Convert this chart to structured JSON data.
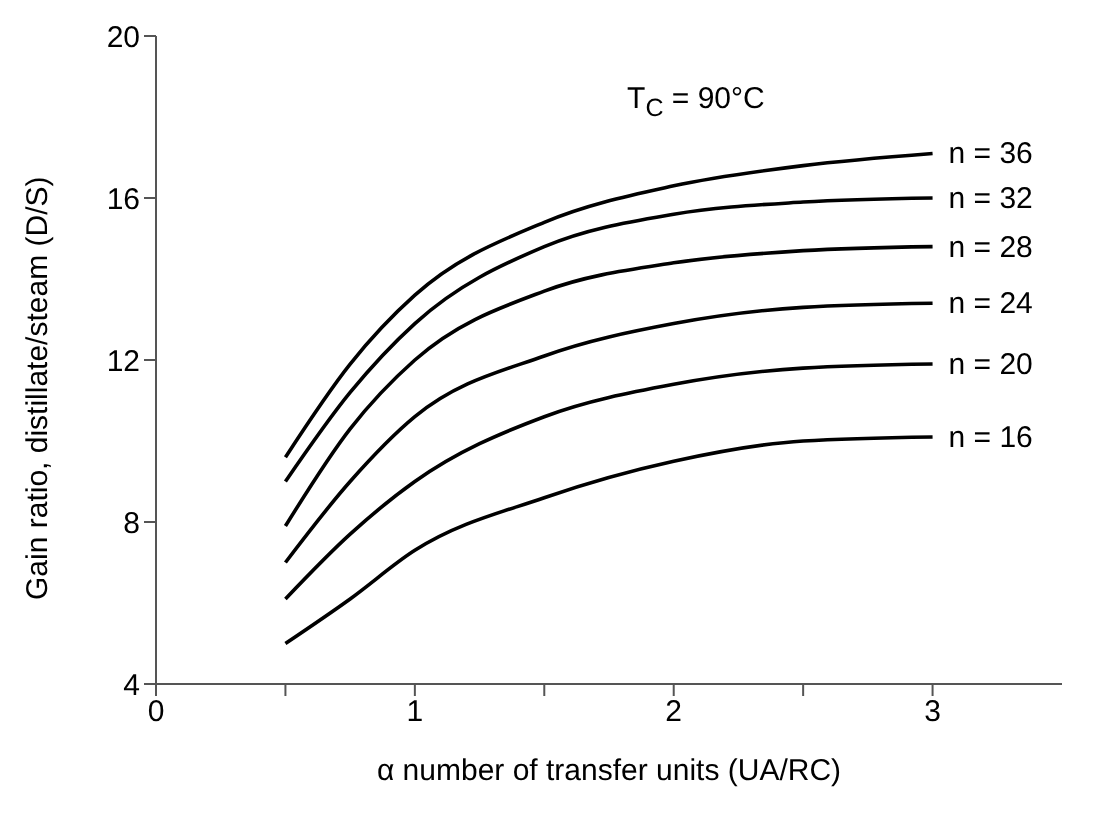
{
  "chart_data": {
    "type": "line",
    "xlabel": "α number of transfer units (UA/RC)",
    "ylabel": "Gain ratio, distillate/steam (D/S)",
    "annotations": [
      "T$_{C}$ = 90°C"
    ],
    "x": [
      0.5,
      0.75,
      1,
      1.5,
      2,
      2.5,
      3
    ],
    "series": [
      {
        "name": "n = 36",
        "color": "#000000",
        "values": [
          9.6,
          11.9,
          13.6,
          15.4,
          16.3,
          16.8,
          17.1
        ]
      },
      {
        "name": "n = 32",
        "color": "#000000",
        "values": [
          9.0,
          11.2,
          12.9,
          14.8,
          15.6,
          15.9,
          16.0
        ]
      },
      {
        "name": "n = 28",
        "color": "#000000",
        "values": [
          7.9,
          10.3,
          12.0,
          13.7,
          14.4,
          14.7,
          14.8
        ]
      },
      {
        "name": "n = 24",
        "color": "#000000",
        "values": [
          7.0,
          9.0,
          10.6,
          12.1,
          12.9,
          13.3,
          13.4
        ]
      },
      {
        "name": "n = 20",
        "color": "#000000",
        "values": [
          6.1,
          7.7,
          9.0,
          10.6,
          11.4,
          11.8,
          11.9
        ]
      },
      {
        "name": "n = 16",
        "color": "#000000",
        "values": [
          5.0,
          6.1,
          7.3,
          8.6,
          9.5,
          10.0,
          10.1
        ]
      }
    ],
    "xlim": [
      0,
      3.5
    ],
    "xticks": [
      0,
      {
        "value": 0.5,
        "label": null
      },
      1,
      {
        "value": 1.5,
        "label": null
      },
      2,
      {
        "value": 2.5,
        "label": null
      },
      3
    ],
    "ylim": [
      4,
      20
    ],
    "yticks": [
      4,
      8,
      12,
      16,
      20
    ],
    "grid": false,
    "legend": false,
    "marker": "none",
    "line_style": "solid"
  }
}
